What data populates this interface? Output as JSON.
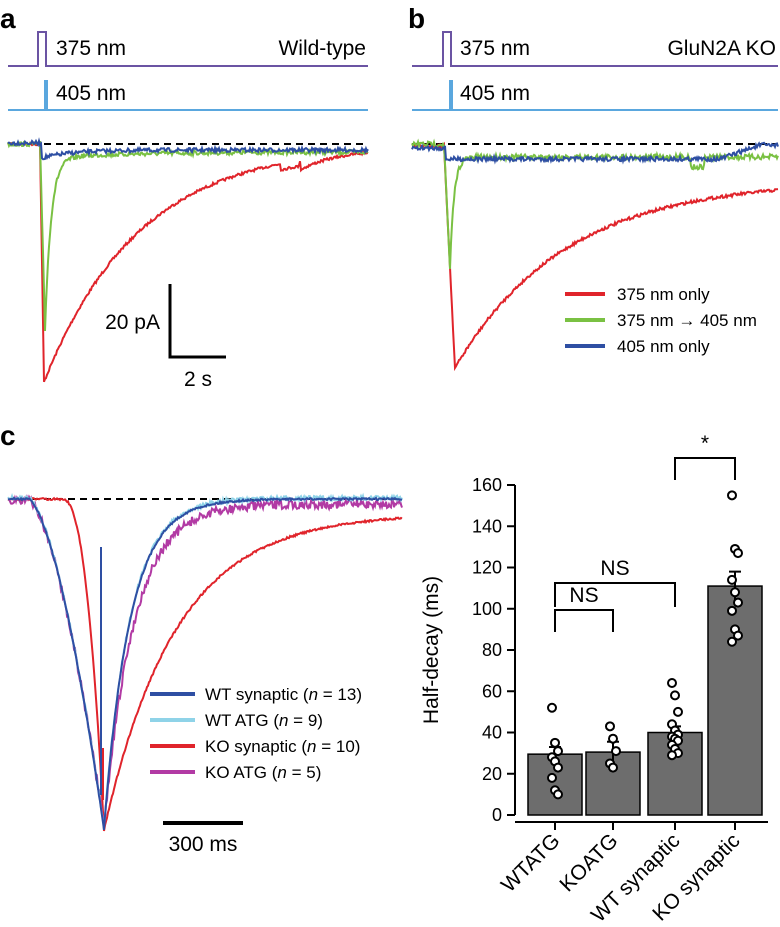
{
  "panels": {
    "a": {
      "label": "a",
      "stim_375": "375 nm",
      "stim_405": "405 nm",
      "genotype": "Wild-type",
      "scale_current": "20 pA",
      "scale_time": "2 s"
    },
    "b": {
      "label": "b",
      "stim_375": "375 nm",
      "stim_405": "405 nm",
      "genotype": "GluN2A KO",
      "legend": [
        {
          "label": "375 nm only",
          "color": "#e0242b"
        },
        {
          "label": "375 nm → 405 nm",
          "color": "#7ac143"
        },
        {
          "label": "405 nm only",
          "color": "#2e4fa3"
        }
      ]
    },
    "c": {
      "label": "c",
      "scale_time": "300 ms",
      "legend": [
        {
          "prefix": "WT synaptic (",
          "n": "n",
          "suffix": " = 13)",
          "color": "#2e4fa3"
        },
        {
          "prefix": "WT ATG (",
          "n": "n",
          "suffix": " = 9)",
          "color": "#8fd3e8"
        },
        {
          "prefix": "KO synaptic (",
          "n": "n",
          "suffix": " = 10)",
          "color": "#e0242b"
        },
        {
          "prefix": "KO ATG (",
          "n": "n",
          "suffix": " = 5)",
          "color": "#b23aa4"
        }
      ]
    }
  },
  "colors": {
    "stim_375": "#6b54a3",
    "stim_405": "#5aa7de",
    "bar_fill": "#6d6d6d"
  },
  "chart_data": {
    "type": "bar",
    "ylabel": "Half-decay (ms)",
    "xlabel": "",
    "ylim": [
      0,
      160
    ],
    "yticks": [
      "0",
      "20",
      "40",
      "60",
      "80",
      "100",
      "120",
      "140",
      "160"
    ],
    "categories": [
      "WTATG",
      "KOATG",
      "WT synaptic",
      "KO synaptic"
    ],
    "values": [
      29.5,
      30.5,
      40,
      111
    ],
    "sem": [
      3.5,
      5,
      3,
      7
    ],
    "points": [
      [
        52,
        35,
        31,
        28,
        26,
        23,
        18,
        12,
        10
      ],
      [
        43,
        37,
        31,
        25,
        23
      ],
      [
        64,
        58,
        50,
        44,
        41,
        39,
        38,
        37,
        36,
        34,
        32,
        30,
        29
      ],
      [
        155,
        129,
        127,
        114,
        108,
        103,
        99,
        90,
        87,
        84
      ]
    ],
    "significance": [
      {
        "between": [
          "WTATG",
          "KOATG"
        ],
        "label": "NS"
      },
      {
        "between": [
          "WTATG",
          "WT synaptic"
        ],
        "label": "NS"
      },
      {
        "between": [
          "WT synaptic",
          "KO synaptic"
        ],
        "label": "*"
      }
    ],
    "grid": false,
    "legend": "none"
  }
}
